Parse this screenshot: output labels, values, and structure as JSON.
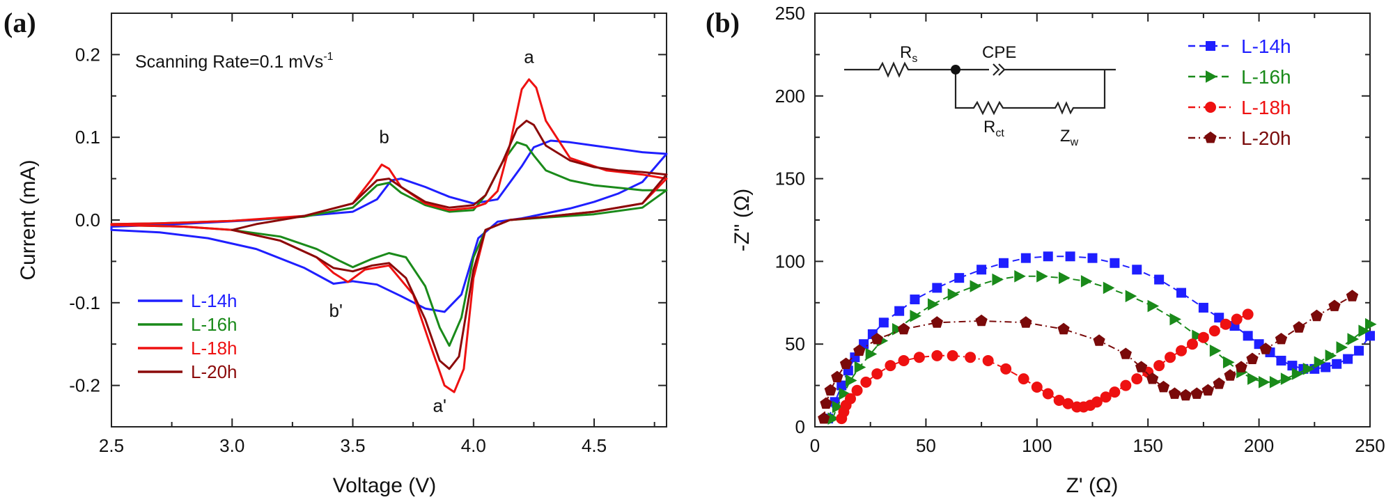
{
  "chart_data": [
    {
      "type": "line",
      "panel_label": "(a)",
      "title": "",
      "xlabel": "Voltage (V)",
      "ylabel": "Current (mA)",
      "xlim": [
        2.5,
        4.8
      ],
      "ylim": [
        -0.25,
        0.25
      ],
      "xticks": [
        "2.5",
        "3.0",
        "3.5",
        "4.0",
        "4.5"
      ],
      "yticks": [
        "-0.2",
        "-0.1",
        "0.0",
        "0.1",
        "0.2"
      ],
      "annotation": {
        "prefix": "Scanning Rate=0.1 mVs",
        "sup": "-1"
      },
      "peak_labels": [
        {
          "text": "a",
          "x": 4.23,
          "y": 0.19
        },
        {
          "text": "b",
          "x": 3.63,
          "y": 0.093
        },
        {
          "text": "b'",
          "x": 3.43,
          "y": -0.117
        },
        {
          "text": "a'",
          "x": 3.86,
          "y": -0.232
        }
      ],
      "legend": "bottom-left",
      "series": [
        {
          "name": "L-14h",
          "color": "#1f1fff",
          "x": [
            2.5,
            2.7,
            2.9,
            3.1,
            3.3,
            3.42,
            3.5,
            3.6,
            3.7,
            3.8,
            3.88,
            3.95,
            4.02,
            4.1,
            4.2,
            4.3,
            4.4,
            4.5,
            4.6,
            4.7,
            4.8,
            4.8,
            4.7,
            4.6,
            4.5,
            4.4,
            4.32,
            4.25,
            4.2,
            4.1,
            4.0,
            3.9,
            3.8,
            3.7,
            3.66,
            3.6,
            3.5,
            3.3,
            3.1,
            2.9,
            2.7,
            2.5
          ],
          "y": [
            -0.012,
            -0.015,
            -0.022,
            -0.035,
            -0.058,
            -0.077,
            -0.074,
            -0.078,
            -0.092,
            -0.107,
            -0.111,
            -0.09,
            -0.022,
            -0.002,
            0.002,
            0.008,
            0.014,
            0.022,
            0.032,
            0.046,
            0.08,
            0.08,
            0.082,
            0.086,
            0.09,
            0.094,
            0.096,
            0.088,
            0.065,
            0.025,
            0.02,
            0.028,
            0.04,
            0.05,
            0.048,
            0.025,
            0.01,
            0.005,
            0.0,
            -0.003,
            -0.006,
            -0.008
          ]
        },
        {
          "name": "L-16h",
          "color": "#1a8a1a",
          "x": [
            2.5,
            2.8,
            3.0,
            3.2,
            3.35,
            3.45,
            3.5,
            3.58,
            3.65,
            3.72,
            3.8,
            3.86,
            3.9,
            3.95,
            4.0,
            4.05,
            4.15,
            4.3,
            4.5,
            4.7,
            4.8,
            4.8,
            4.7,
            4.5,
            4.4,
            4.3,
            4.25,
            4.22,
            4.18,
            4.12,
            4.05,
            4.0,
            3.9,
            3.8,
            3.7,
            3.65,
            3.6,
            3.5,
            3.3,
            3.0,
            2.7,
            2.5
          ],
          "y": [
            -0.006,
            -0.008,
            -0.012,
            -0.02,
            -0.035,
            -0.05,
            -0.057,
            -0.047,
            -0.04,
            -0.045,
            -0.08,
            -0.13,
            -0.152,
            -0.118,
            -0.045,
            -0.012,
            0.0,
            0.003,
            0.007,
            0.015,
            0.036,
            0.036,
            0.036,
            0.042,
            0.048,
            0.06,
            0.078,
            0.09,
            0.094,
            0.07,
            0.03,
            0.012,
            0.01,
            0.018,
            0.033,
            0.045,
            0.042,
            0.015,
            0.004,
            -0.001,
            -0.004,
            -0.005
          ]
        },
        {
          "name": "L-18h",
          "color": "#ee1111",
          "x": [
            2.5,
            2.8,
            3.0,
            3.2,
            3.35,
            3.42,
            3.48,
            3.55,
            3.65,
            3.75,
            3.82,
            3.88,
            3.92,
            3.96,
            4.0,
            4.05,
            4.15,
            4.3,
            4.5,
            4.7,
            4.8,
            4.8,
            4.7,
            4.55,
            4.4,
            4.3,
            4.26,
            4.23,
            4.2,
            4.15,
            4.1,
            4.05,
            4.0,
            3.9,
            3.8,
            3.7,
            3.65,
            3.62,
            3.58,
            3.5,
            3.3,
            3.0,
            2.7,
            2.5
          ],
          "y": [
            -0.006,
            -0.008,
            -0.012,
            -0.025,
            -0.045,
            -0.064,
            -0.075,
            -0.06,
            -0.055,
            -0.09,
            -0.15,
            -0.2,
            -0.208,
            -0.18,
            -0.07,
            -0.012,
            0.0,
            0.004,
            0.01,
            0.02,
            0.05,
            0.05,
            0.055,
            0.06,
            0.075,
            0.12,
            0.16,
            0.17,
            0.158,
            0.09,
            0.035,
            0.02,
            0.015,
            0.012,
            0.02,
            0.04,
            0.062,
            0.067,
            0.05,
            0.02,
            0.005,
            -0.001,
            -0.004,
            -0.005
          ]
        },
        {
          "name": "L-20h",
          "color": "#8b0a0a",
          "x": [
            3.0,
            3.2,
            3.35,
            3.42,
            3.5,
            3.58,
            3.65,
            3.72,
            3.8,
            3.86,
            3.9,
            3.94,
            4.0,
            4.05,
            4.15,
            4.3,
            4.5,
            4.7,
            4.8,
            4.8,
            4.7,
            4.6,
            4.5,
            4.4,
            4.3,
            4.25,
            4.22,
            4.18,
            4.12,
            4.05,
            4.0,
            3.9,
            3.8,
            3.7,
            3.65,
            3.6,
            3.5,
            3.3,
            3.1,
            3.0
          ],
          "y": [
            -0.012,
            -0.025,
            -0.045,
            -0.058,
            -0.062,
            -0.055,
            -0.052,
            -0.07,
            -0.12,
            -0.17,
            -0.18,
            -0.165,
            -0.06,
            -0.012,
            0.0,
            0.004,
            0.01,
            0.02,
            0.055,
            0.055,
            0.058,
            0.06,
            0.064,
            0.072,
            0.09,
            0.115,
            0.12,
            0.11,
            0.07,
            0.03,
            0.018,
            0.015,
            0.022,
            0.04,
            0.05,
            0.048,
            0.02,
            0.005,
            -0.005,
            -0.012
          ]
        }
      ]
    },
    {
      "type": "scatter",
      "panel_label": "(b)",
      "title": "",
      "xlabel": "Z' (Ω)",
      "ylabel": "-Z'' (Ω)",
      "xlim": [
        0,
        250
      ],
      "ylim": [
        0,
        250
      ],
      "xticks": [
        "0",
        "50",
        "100",
        "150",
        "200",
        "250"
      ],
      "yticks": [
        "0",
        "50",
        "100",
        "150",
        "200",
        "250"
      ],
      "legend": "top-right",
      "circuit": {
        "rs": "R",
        "rs_sub": "s",
        "cpe": "CPE",
        "rct": "R",
        "rct_sub": "ct",
        "zw": "Z",
        "zw_sub": "w"
      },
      "series": [
        {
          "name": "L-14h",
          "color": "#1f1fff",
          "marker": "square",
          "line": "dashed",
          "x": [
            6,
            9,
            12,
            15,
            18,
            22,
            26,
            31,
            38,
            45,
            55,
            65,
            75,
            85,
            95,
            105,
            115,
            125,
            135,
            145,
            155,
            165,
            175,
            182,
            189,
            195,
            200,
            205,
            210,
            215,
            220,
            225,
            230,
            235,
            240,
            245,
            250
          ],
          "y": [
            5,
            15,
            25,
            34,
            42,
            50,
            56,
            63,
            70,
            77,
            84,
            90,
            95,
            99,
            102,
            103,
            103,
            102,
            99,
            95,
            89,
            81,
            72,
            66,
            61,
            55,
            50,
            45,
            40,
            37,
            35,
            35,
            36,
            38,
            41,
            46,
            55
          ]
        },
        {
          "name": "L-16h",
          "color": "#1a8a1a",
          "marker": "triangle-right",
          "line": "dashed",
          "x": [
            8,
            10,
            13,
            16,
            20,
            25,
            30,
            37,
            45,
            53,
            62,
            72,
            82,
            92,
            102,
            112,
            122,
            132,
            142,
            152,
            162,
            172,
            180,
            186,
            192,
            197,
            202,
            207,
            212,
            217,
            222,
            227,
            232,
            237,
            242,
            247,
            250
          ],
          "y": [
            5,
            12,
            20,
            28,
            36,
            44,
            52,
            59,
            67,
            74,
            80,
            85,
            89,
            91,
            91,
            90,
            88,
            84,
            79,
            73,
            65,
            55,
            46,
            39,
            33,
            29,
            27,
            27,
            29,
            32,
            35,
            39,
            43,
            48,
            53,
            58,
            62
          ]
        },
        {
          "name": "L-18h",
          "color": "#ee1111",
          "marker": "circle",
          "line": "dashdot",
          "x": [
            12,
            13,
            14,
            16,
            19,
            23,
            28,
            34,
            40,
            47,
            55,
            62,
            70,
            78,
            86,
            94,
            100,
            105,
            110,
            114,
            118,
            121,
            124,
            127,
            131,
            135,
            140,
            145,
            150,
            155,
            160,
            165,
            170,
            175,
            180,
            185,
            190,
            195
          ],
          "y": [
            5,
            9,
            13,
            17,
            22,
            27,
            32,
            37,
            40,
            42,
            43,
            43,
            42,
            40,
            35,
            29,
            24,
            20,
            16,
            14,
            12,
            12,
            13,
            15,
            18,
            21,
            25,
            29,
            33,
            37,
            42,
            46,
            50,
            54,
            58,
            62,
            65,
            68
          ]
        },
        {
          "name": "L-20h",
          "color": "#7a0a0a",
          "marker": "pentagon",
          "line": "dashdot",
          "x": [
            4,
            5,
            7,
            10,
            14,
            20,
            28,
            40,
            55,
            75,
            95,
            112,
            128,
            140,
            147,
            152,
            157,
            162,
            167,
            172,
            177,
            182,
            187,
            192,
            197,
            203,
            210,
            218,
            226,
            234,
            242
          ],
          "y": [
            5,
            14,
            22,
            30,
            38,
            46,
            53,
            59,
            63,
            64,
            63,
            59,
            52,
            44,
            36,
            29,
            24,
            20,
            19,
            20,
            22,
            26,
            31,
            36,
            41,
            47,
            53,
            60,
            67,
            73,
            79
          ]
        }
      ]
    }
  ]
}
